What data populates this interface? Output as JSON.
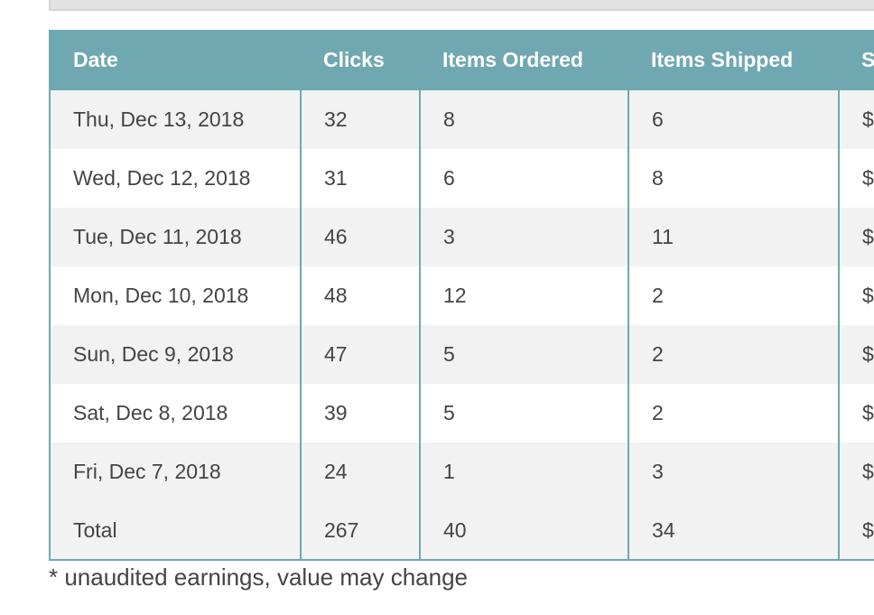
{
  "columns": [
    "Date",
    "Clicks",
    "Items Ordered",
    "Items Shipped",
    "S"
  ],
  "rows": [
    [
      "Thu, Dec 13, 2018",
      "32",
      "8",
      "6",
      "$"
    ],
    [
      "Wed, Dec 12, 2018",
      "31",
      "6",
      "8",
      "$"
    ],
    [
      "Tue, Dec 11, 2018",
      "46",
      "3",
      "11",
      "$"
    ],
    [
      "Mon, Dec 10, 2018",
      "48",
      "12",
      "2",
      "$"
    ],
    [
      "Sun, Dec 9, 2018",
      "47",
      "5",
      "2",
      "$"
    ],
    [
      "Sat, Dec 8, 2018",
      "39",
      "5",
      "2",
      "$"
    ],
    [
      "Fri, Dec 7, 2018",
      "24",
      "1",
      "3",
      "$"
    ]
  ],
  "total": [
    "Total",
    "267",
    "40",
    "34",
    "$"
  ],
  "footnote": "* unaudited earnings, value may change",
  "colors": {
    "header_bg": "#6fa8b0",
    "row_alt_bg": "#f2f2f2",
    "text": "#444444"
  }
}
